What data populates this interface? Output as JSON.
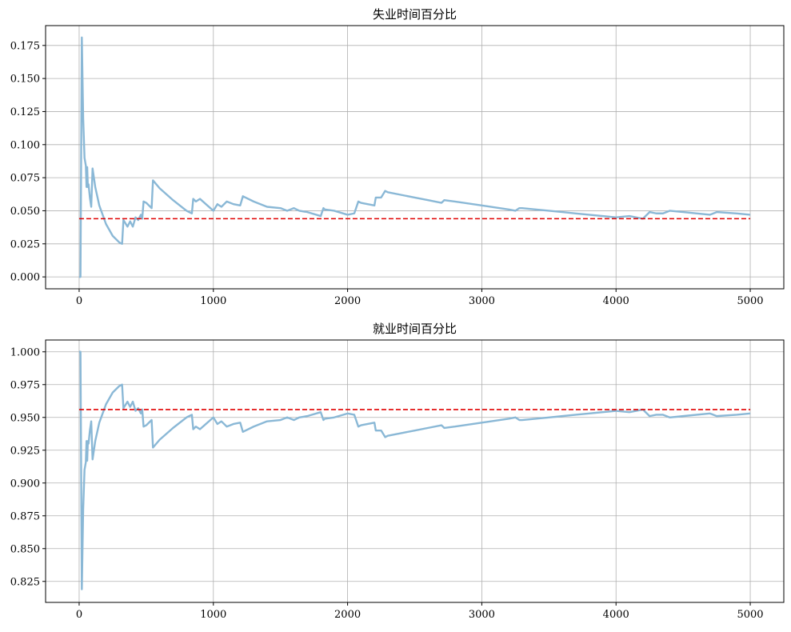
{
  "chart_data": [
    {
      "type": "line",
      "title": "失业时间百分比",
      "xlabel": "",
      "ylabel": "",
      "xlim": [
        -250,
        5250
      ],
      "ylim": [
        -0.009,
        0.19
      ],
      "xticks": [
        0,
        1000,
        2000,
        3000,
        4000,
        5000
      ],
      "xtick_labels": [
        "0",
        "1000",
        "2000",
        "3000",
        "4000",
        "5000"
      ],
      "yticks": [
        0,
        0.025,
        0.05,
        0.075,
        0.1,
        0.125,
        0.15,
        0.175
      ],
      "ytick_labels": [
        "0.000",
        "0.025",
        "0.050",
        "0.075",
        "0.100",
        "0.125",
        "0.150",
        "0.175"
      ],
      "grid": true,
      "legend": "none",
      "series": [
        {
          "style": "solid",
          "color": "#8ab8d6",
          "x": [
            0,
            10,
            20,
            30,
            40,
            50,
            55,
            60,
            65,
            70,
            80,
            90,
            100,
            120,
            150,
            200,
            250,
            300,
            320,
            330,
            360,
            380,
            400,
            420,
            440,
            460,
            470,
            480,
            500,
            540,
            550,
            600,
            700,
            800,
            840,
            850,
            870,
            900,
            1000,
            1030,
            1060,
            1100,
            1150,
            1200,
            1220,
            1300,
            1400,
            1500,
            1550,
            1600,
            1640,
            1700,
            1800,
            1820,
            1830,
            1900,
            2000,
            2050,
            2080,
            2100,
            2200,
            2210,
            2250,
            2280,
            2300,
            2400,
            2500,
            2600,
            2700,
            2720,
            2800,
            3000,
            3200,
            3250,
            3280,
            3300,
            3400,
            3500,
            3600,
            3700,
            3800,
            4000,
            4100,
            4200,
            4250,
            4300,
            4350,
            4400,
            4500,
            4700,
            4750,
            4900,
            5000
          ],
          "y": [
            0.0,
            0.0,
            0.181,
            0.12,
            0.09,
            0.084,
            0.068,
            0.083,
            0.068,
            0.07,
            0.06,
            0.053,
            0.082,
            0.068,
            0.054,
            0.04,
            0.031,
            0.026,
            0.025,
            0.043,
            0.038,
            0.042,
            0.038,
            0.045,
            0.043,
            0.047,
            0.044,
            0.057,
            0.056,
            0.052,
            0.073,
            0.067,
            0.058,
            0.05,
            0.048,
            0.059,
            0.057,
            0.059,
            0.05,
            0.055,
            0.053,
            0.057,
            0.055,
            0.054,
            0.061,
            0.057,
            0.053,
            0.052,
            0.05,
            0.052,
            0.05,
            0.049,
            0.046,
            0.052,
            0.051,
            0.05,
            0.047,
            0.048,
            0.057,
            0.056,
            0.054,
            0.06,
            0.06,
            0.065,
            0.064,
            0.062,
            0.06,
            0.058,
            0.056,
            0.058,
            0.057,
            0.054,
            0.051,
            0.05,
            0.052,
            0.052,
            0.051,
            0.05,
            0.049,
            0.048,
            0.047,
            0.045,
            0.046,
            0.044,
            0.049,
            0.048,
            0.048,
            0.05,
            0.049,
            0.047,
            0.049,
            0.048,
            0.047
          ]
        },
        {
          "style": "dashed",
          "color": "#e00000",
          "x": [
            0,
            5000
          ],
          "y": [
            0.044,
            0.044
          ]
        }
      ]
    },
    {
      "type": "line",
      "title": "就业时间百分比",
      "xlabel": "",
      "ylabel": "",
      "xlim": [
        -250,
        5250
      ],
      "ylim": [
        0.809,
        1.009
      ],
      "xticks": [
        0,
        1000,
        2000,
        3000,
        4000,
        5000
      ],
      "xtick_labels": [
        "0",
        "1000",
        "2000",
        "3000",
        "4000",
        "5000"
      ],
      "yticks": [
        0.825,
        0.85,
        0.875,
        0.9,
        0.925,
        0.95,
        0.975,
        1.0
      ],
      "ytick_labels": [
        "0.825",
        "0.850",
        "0.875",
        "0.900",
        "0.925",
        "0.950",
        "0.975",
        "1.000"
      ],
      "grid": true,
      "legend": "none",
      "series": [
        {
          "style": "solid",
          "color": "#8ab8d6",
          "x": [
            0,
            10,
            20,
            30,
            40,
            50,
            55,
            60,
            65,
            70,
            80,
            90,
            100,
            120,
            150,
            200,
            250,
            300,
            320,
            330,
            360,
            380,
            400,
            420,
            440,
            460,
            470,
            480,
            500,
            540,
            550,
            600,
            700,
            800,
            840,
            850,
            870,
            900,
            1000,
            1030,
            1060,
            1100,
            1150,
            1200,
            1220,
            1300,
            1400,
            1500,
            1550,
            1600,
            1640,
            1700,
            1800,
            1820,
            1830,
            1900,
            2000,
            2050,
            2080,
            2100,
            2200,
            2210,
            2250,
            2280,
            2300,
            2400,
            2500,
            2600,
            2700,
            2720,
            2800,
            3000,
            3200,
            3250,
            3280,
            3300,
            3400,
            3500,
            3600,
            3700,
            3800,
            4000,
            4100,
            4200,
            4250,
            4300,
            4350,
            4400,
            4500,
            4700,
            4750,
            4900,
            5000
          ],
          "y": [
            1.0,
            1.0,
            0.819,
            0.88,
            0.91,
            0.916,
            0.932,
            0.917,
            0.932,
            0.93,
            0.94,
            0.947,
            0.918,
            0.932,
            0.946,
            0.96,
            0.969,
            0.974,
            0.975,
            0.957,
            0.962,
            0.958,
            0.962,
            0.955,
            0.957,
            0.953,
            0.956,
            0.943,
            0.944,
            0.948,
            0.927,
            0.933,
            0.942,
            0.95,
            0.952,
            0.941,
            0.943,
            0.941,
            0.95,
            0.945,
            0.947,
            0.943,
            0.945,
            0.946,
            0.939,
            0.943,
            0.947,
            0.948,
            0.95,
            0.948,
            0.95,
            0.951,
            0.954,
            0.948,
            0.949,
            0.95,
            0.953,
            0.952,
            0.943,
            0.944,
            0.946,
            0.94,
            0.94,
            0.935,
            0.936,
            0.938,
            0.94,
            0.942,
            0.944,
            0.942,
            0.943,
            0.946,
            0.949,
            0.95,
            0.948,
            0.948,
            0.949,
            0.95,
            0.951,
            0.952,
            0.953,
            0.955,
            0.954,
            0.956,
            0.951,
            0.952,
            0.952,
            0.95,
            0.951,
            0.953,
            0.951,
            0.952,
            0.953
          ]
        },
        {
          "style": "dashed",
          "color": "#e00000",
          "x": [
            0,
            5000
          ],
          "y": [
            0.956,
            0.956
          ]
        }
      ]
    }
  ]
}
